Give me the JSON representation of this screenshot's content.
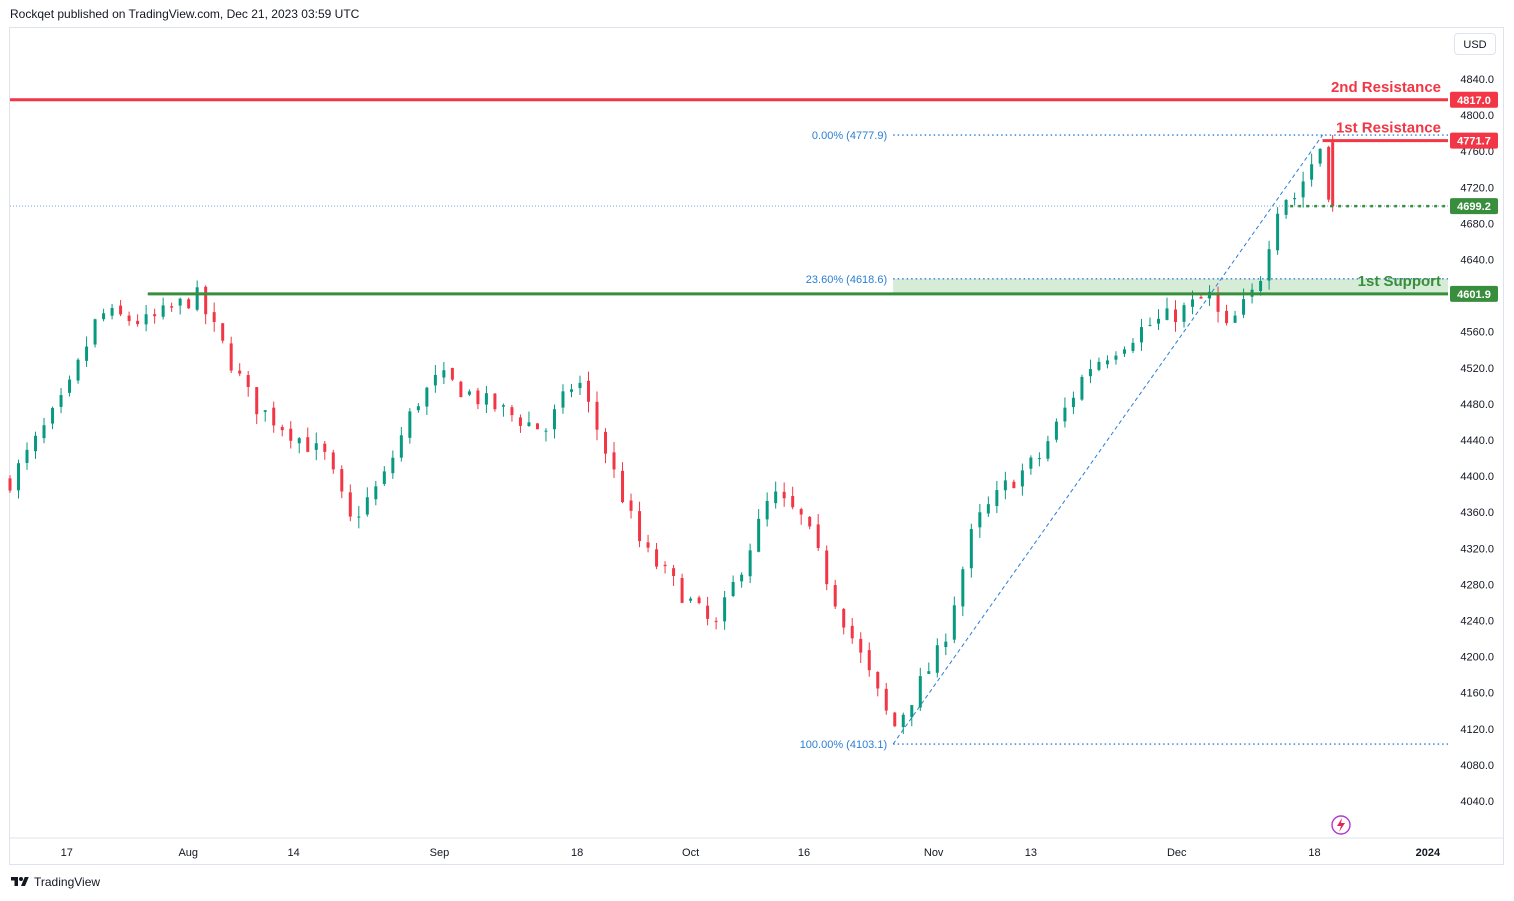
{
  "header": {
    "publisher_line": "Rockqet published on TradingView.com, Dec 21, 2023 03:59 UTC"
  },
  "currency": "USD",
  "footer": {
    "brand": "TradingView"
  },
  "colors": {
    "resistance": "#f23645",
    "support": "#388e3c",
    "fib": "#2a7fd4",
    "up": "#089981",
    "down": "#f23645",
    "price_line": "#2a7fd4"
  },
  "icons": {
    "logo": "tradingview-logo-icon",
    "flash": "flash-circle-icon"
  },
  "chart_data": {
    "type": "candlestick",
    "symbol_currency": "USD",
    "ylim": [
      4010,
      4860
    ],
    "y_ticks": [
      4840.0,
      4800.0,
      4760.0,
      4720.0,
      4680.0,
      4640.0,
      4600.0,
      4560.0,
      4520.0,
      4480.0,
      4440.0,
      4400.0,
      4360.0,
      4320.0,
      4280.0,
      4240.0,
      4200.0,
      4160.0,
      4120.0,
      4080.0,
      4040.0
    ],
    "x_ticks": [
      {
        "label": "17",
        "date": "2023-07-17"
      },
      {
        "label": "Aug",
        "date": "2023-08-01"
      },
      {
        "label": "14",
        "date": "2023-08-14"
      },
      {
        "label": "Sep",
        "date": "2023-09-01"
      },
      {
        "label": "18",
        "date": "2023-09-18"
      },
      {
        "label": "Oct",
        "date": "2023-10-02"
      },
      {
        "label": "16",
        "date": "2023-10-16"
      },
      {
        "label": "Nov",
        "date": "2023-11-01"
      },
      {
        "label": "13",
        "date": "2023-11-13"
      },
      {
        "label": "Dec",
        "date": "2023-12-01"
      },
      {
        "label": "18",
        "date": "2023-12-18"
      },
      {
        "label": "2024",
        "date": "2024-01-01"
      }
    ],
    "x_range": [
      "2023-07-10",
      "2024-01-02"
    ],
    "path_dates": [
      "2023-07-10",
      "2023-07-17",
      "2023-07-21",
      "2023-07-27",
      "2023-08-02",
      "2023-08-09",
      "2023-08-18",
      "2023-08-21",
      "2023-08-25",
      "2023-08-29",
      "2023-09-01",
      "2023-09-07",
      "2023-09-14",
      "2023-09-18",
      "2023-09-21",
      "2023-09-26",
      "2023-10-02",
      "2023-10-05",
      "2023-10-12",
      "2023-10-16",
      "2023-10-20",
      "2023-10-27",
      "2023-11-02",
      "2023-11-06",
      "2023-11-10",
      "2023-11-14",
      "2023-11-20",
      "2023-11-27",
      "2023-12-01",
      "2023-12-05",
      "2023-12-07",
      "2023-12-11",
      "2023-12-14",
      "2023-12-15",
      "2023-12-19",
      "2023-12-20"
    ],
    "path_values": [
      4395,
      4490,
      4580,
      4570,
      4600,
      4480,
      4420,
      4350,
      4395,
      4480,
      4510,
      4480,
      4450,
      4510,
      4440,
      4320,
      4260,
      4230,
      4380,
      4350,
      4260,
      4120,
      4210,
      4345,
      4390,
      4420,
      4520,
      4565,
      4580,
      4600,
      4560,
      4610,
      4720,
      4700,
      4770,
      4699
    ],
    "levels": [
      {
        "name": "2nd Resistance",
        "value": 4817.0,
        "tag": "4817.0",
        "color": "#f23645",
        "style": "solid"
      },
      {
        "name": "1st Resistance",
        "value": 4771.7,
        "tag": "4771.7",
        "color": "#f23645",
        "style": "solid"
      },
      {
        "name": "1st Support",
        "value": 4601.9,
        "tag": "4601.9",
        "color": "#388e3c",
        "style": "solid"
      }
    ],
    "current_price": {
      "value": 4699.2,
      "tag": "4699.2"
    },
    "fibonacci": [
      {
        "label": "0.00% (4777.9)",
        "value": 4777.9
      },
      {
        "label": "23.60% (4618.6)",
        "value": 4618.6
      },
      {
        "label": "100.00% (4103.1)",
        "value": 4103.1
      }
    ],
    "fib_anchor_dates": {
      "start": "2023-10-27",
      "end": "2023-12-19"
    }
  }
}
